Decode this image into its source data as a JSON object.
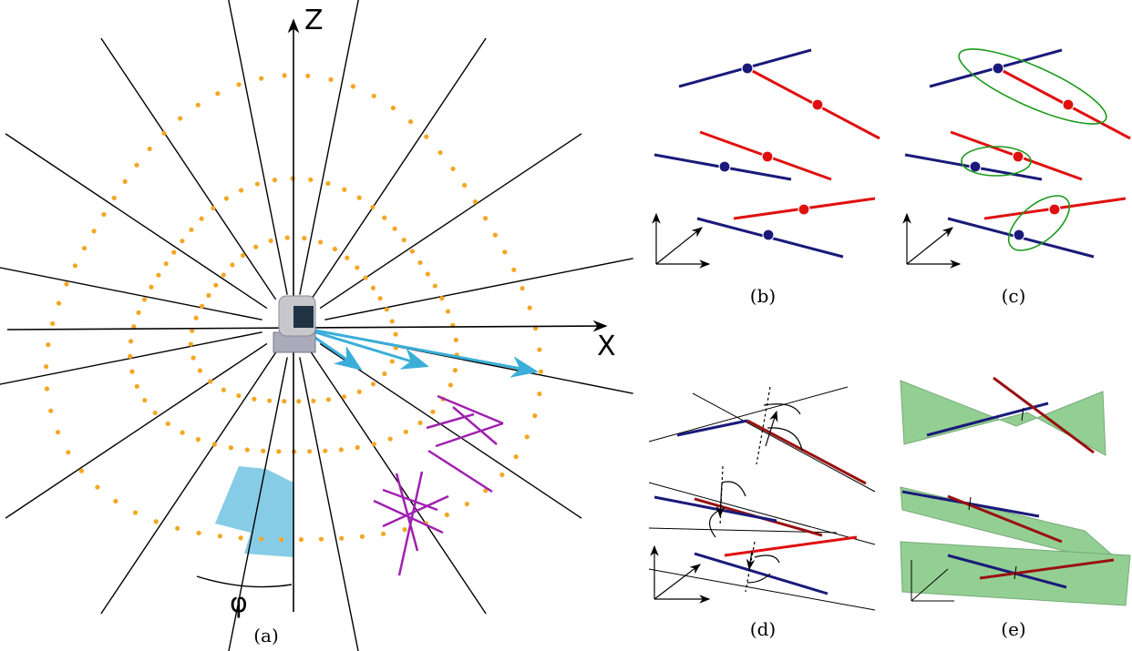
{
  "labels": {
    "z_axis": "Z",
    "x_axis": "X",
    "angle": "φ"
  },
  "captions": [
    "(a)",
    "(b)",
    "(c)",
    "(d)",
    "(e)"
  ]
}
